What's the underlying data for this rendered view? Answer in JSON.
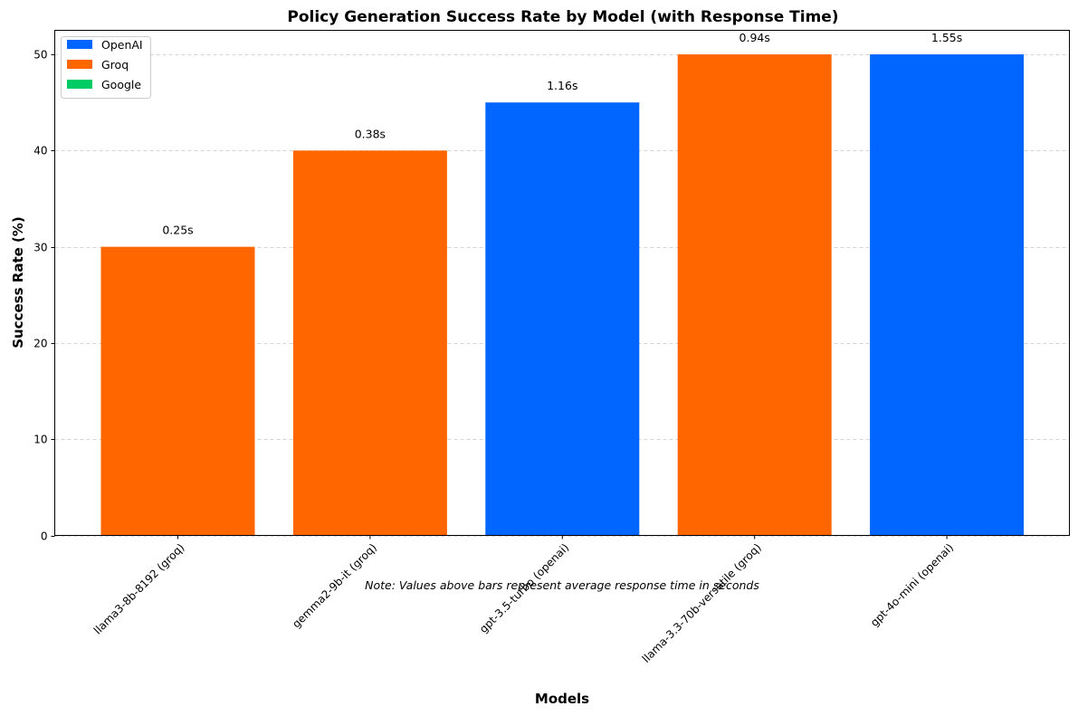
{
  "chart_data": {
    "type": "bar",
    "title": "Policy Generation Success Rate by Model (with Response Time)",
    "xlabel": "Models",
    "ylabel": "Success Rate (%)",
    "ylim": [
      0,
      52.5
    ],
    "yticks": [
      0,
      10,
      20,
      30,
      40,
      50
    ],
    "grid": "horizontal dashed",
    "legend_placement": "top-left",
    "categories": [
      "llama3-8b-8192 (groq)",
      "gemma2-9b-it (groq)",
      "gpt-3.5-turbo (openai)",
      "llama-3.3-70b-versatile (groq)",
      "gpt-4o-mini (openai)"
    ],
    "values": [
      30,
      40,
      45,
      50,
      50
    ],
    "providers": [
      "Groq",
      "Groq",
      "OpenAI",
      "Groq",
      "OpenAI"
    ],
    "data_labels": [
      "0.25s",
      "0.38s",
      "1.16s",
      "0.94s",
      "1.55s"
    ],
    "legend": [
      {
        "name": "OpenAI",
        "color": "#0066ff"
      },
      {
        "name": "Groq",
        "color": "#ff6600"
      },
      {
        "name": "Google",
        "color": "#00cc66"
      }
    ],
    "note": "Note: Values above bars represent average response time in seconds"
  }
}
